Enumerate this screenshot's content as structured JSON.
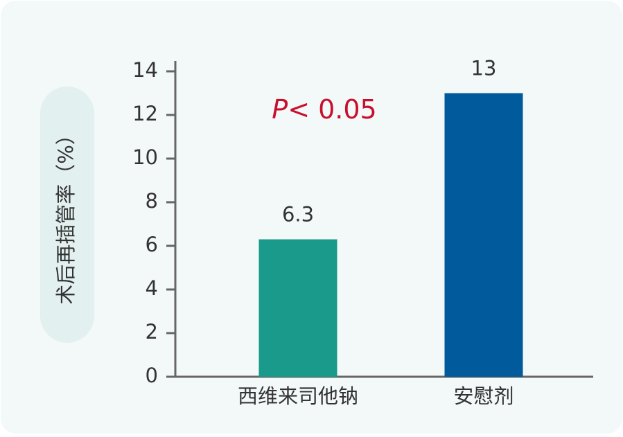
{
  "chart_data": {
    "type": "bar",
    "ylabel": "术后再插管率（%）",
    "annotation_italic": "P",
    "annotation": "< 0.05",
    "annotation_color": "#c8102e",
    "categories": [
      "西维来司他钠",
      "安慰剂"
    ],
    "values": [
      6.3,
      13
    ],
    "colors": [
      "#1a9a8a",
      "#005a9c"
    ],
    "ylim": [
      0,
      14
    ],
    "yticks": [
      0,
      2,
      4,
      6,
      8,
      10,
      12,
      14
    ],
    "grid": false
  }
}
